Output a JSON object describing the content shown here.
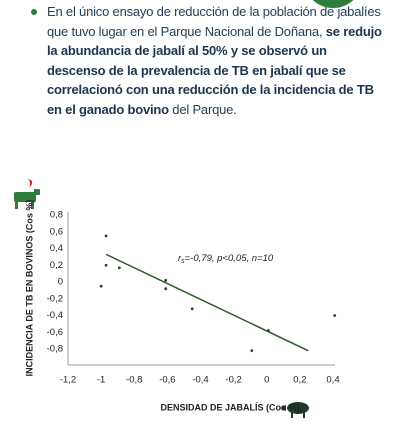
{
  "paragraph": [
    {
      "text": "En el único ensayo de reducción de la población de jabalíes que tuvo lugar en el Parque Nacional de Doñana, ",
      "bold": false
    },
    {
      "text": "se redujo la abundancia de jabalí al 50% y se observó un descenso de la prevalencia de TB en jabalí que se correlacionó con una reducción de la incidencia de TB en el ganado bovino",
      "bold": true
    },
    {
      "text": " del Parque.",
      "bold": false
    }
  ],
  "chart_data": {
    "type": "scatter",
    "x_label": "DENSIDAD DE JABALÍS (Cos %)",
    "y_label": "INCIDENCIA DE TB EN BOVINOS (Cos %)",
    "annotation": [
      "r",
      "s",
      "=-0,79, p<0,05, n=10"
    ],
    "color": "#1f4a2a",
    "x": [
      -0.97,
      -0.97,
      -0.89,
      -1.0,
      -0.61,
      -0.61,
      -0.45,
      0.01,
      -0.09,
      0.41
    ],
    "values": [
      0.55,
      0.2,
      0.17,
      -0.05,
      0.02,
      -0.08,
      -0.32,
      -0.58,
      -0.82,
      -0.4
    ],
    "trendline": {
      "color": "#2f5a2c",
      "x": [
        -0.97,
        0.25
      ],
      "values": [
        0.33,
        -0.82
      ]
    },
    "xlim": [
      -1.2,
      0.4
    ],
    "ylim": [
      -0.8,
      0.8
    ],
    "xticks": [
      {
        "value": -1.2,
        "label": "-1,2"
      },
      -1,
      {
        "value": -0.8,
        "label": "-0,8"
      },
      {
        "value": -0.6,
        "label": "-0,6"
      },
      {
        "value": -0.4,
        "label": "-0,4"
      },
      {
        "value": -0.2,
        "label": "-0,2"
      },
      0,
      {
        "value": 0.2,
        "label": "0,2"
      },
      {
        "value": 0.4,
        "label": "0,4"
      }
    ],
    "yticks": [
      {
        "value": 0.8,
        "label": "0,8"
      },
      {
        "value": 0.6,
        "label": "0,6"
      },
      {
        "value": 0.4,
        "label": "0,4"
      },
      {
        "value": 0.2,
        "label": "0,2"
      },
      0,
      {
        "value": -0.2,
        "label": "-0,2"
      },
      {
        "value": -0.4,
        "label": "-0,4"
      },
      {
        "value": -0.6,
        "label": "-0,6"
      },
      {
        "value": -0.8,
        "label": "-0,8"
      }
    ]
  }
}
